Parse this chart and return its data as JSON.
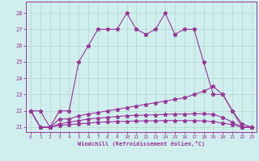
{
  "xlabel": "Windchill (Refroidissement éolien,°C)",
  "xlim": [
    -0.5,
    23.5
  ],
  "ylim": [
    20.7,
    28.7
  ],
  "yticks": [
    21,
    22,
    23,
    24,
    25,
    26,
    27,
    28
  ],
  "xticks": [
    0,
    1,
    2,
    3,
    4,
    5,
    6,
    7,
    8,
    9,
    10,
    11,
    12,
    13,
    14,
    15,
    16,
    17,
    18,
    19,
    20,
    21,
    22,
    23
  ],
  "bg_color": "#d0eeee",
  "grid_color": "#b0d8c8",
  "line_color": "#993399",
  "line_width": 0.8,
  "marker": "*",
  "marker_size": 3.5,
  "series": [
    [
      22,
      22,
      21,
      22,
      22,
      25,
      26,
      27,
      27,
      27,
      28,
      27,
      26.7,
      27,
      28,
      26.7,
      27,
      27,
      25,
      23,
      23,
      22,
      21.2,
      21
    ],
    [
      22,
      21,
      21,
      21.5,
      21.5,
      21.7,
      21.8,
      21.9,
      22.0,
      22.1,
      22.2,
      22.3,
      22.4,
      22.5,
      22.6,
      22.7,
      22.8,
      23.0,
      23.2,
      23.5,
      23.0,
      22.0,
      21.0,
      21.0
    ],
    [
      22,
      21,
      21,
      21.2,
      21.3,
      21.4,
      21.5,
      21.55,
      21.6,
      21.65,
      21.7,
      21.72,
      21.74,
      21.76,
      21.78,
      21.8,
      21.8,
      21.82,
      21.82,
      21.78,
      21.6,
      21.3,
      21.0,
      21.0
    ],
    [
      22,
      21,
      21,
      21.1,
      21.15,
      21.2,
      21.25,
      21.3,
      21.32,
      21.34,
      21.36,
      21.37,
      21.38,
      21.39,
      21.4,
      21.4,
      21.4,
      21.4,
      21.38,
      21.34,
      21.25,
      21.15,
      21.0,
      21.0
    ]
  ]
}
